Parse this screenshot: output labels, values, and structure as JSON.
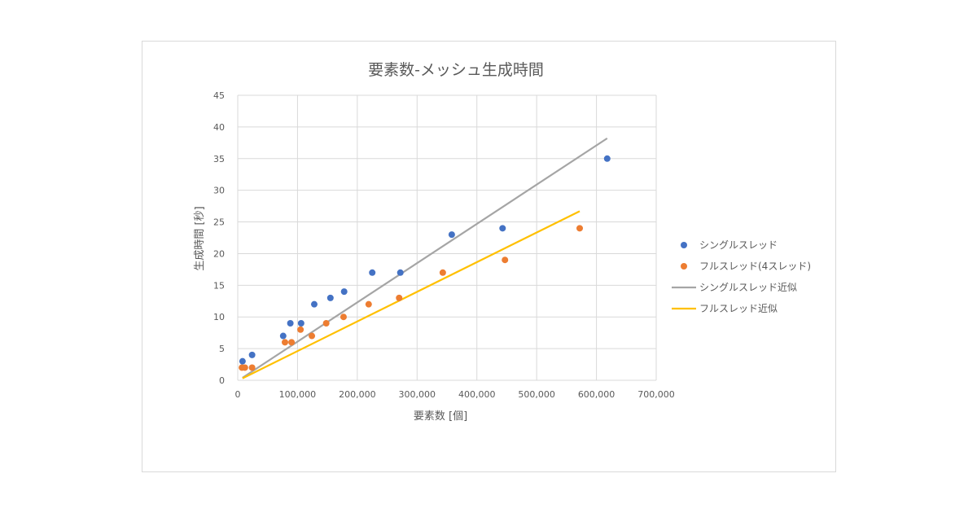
{
  "chart_data": {
    "type": "scatter",
    "title": "要素数-メッシュ生成時間",
    "xlabel": "要素数 [個]",
    "ylabel": "生成時間 [秒]",
    "xlim": [
      0,
      700000
    ],
    "ylim": [
      0,
      45
    ],
    "xticks": [
      0,
      100000,
      200000,
      300000,
      400000,
      500000,
      600000,
      700000
    ],
    "xtick_labels": [
      "0",
      "100,000",
      "200,000",
      "300,000",
      "400,000",
      "500,000",
      "600,000",
      "700,000"
    ],
    "yticks": [
      0,
      5,
      10,
      15,
      20,
      25,
      30,
      35,
      40,
      45
    ],
    "grid": true,
    "legend_position": "right",
    "series": [
      {
        "name": "シングルスレッド",
        "kind": "points",
        "color": "#4472C4",
        "x": [
          8000,
          24000,
          76000,
          88000,
          106000,
          128000,
          155000,
          178000,
          225000,
          272000,
          358000,
          443000,
          618000
        ],
        "y": [
          3,
          4,
          7,
          9,
          9,
          12,
          13,
          14,
          17,
          17,
          23,
          24,
          35
        ]
      },
      {
        "name": "フルスレッド(4スレッド)",
        "kind": "points",
        "color": "#ED7D31",
        "x": [
          7000,
          12000,
          24000,
          79000,
          90000,
          105000,
          124000,
          148000,
          177000,
          219000,
          270000,
          343000,
          447000,
          572000
        ],
        "y": [
          2,
          2,
          2,
          6,
          6,
          8,
          7,
          9,
          10,
          12,
          13,
          17,
          19,
          24
        ]
      },
      {
        "name": "シングルスレッド近似",
        "kind": "line",
        "color": "#A5A5A5",
        "x": [
          8000,
          618000
        ],
        "y": [
          0.4,
          38.2
        ]
      },
      {
        "name": "フルスレッド近似",
        "kind": "line",
        "color": "#FFC000",
        "x": [
          8000,
          572000
        ],
        "y": [
          0.3,
          26.7
        ]
      }
    ]
  }
}
